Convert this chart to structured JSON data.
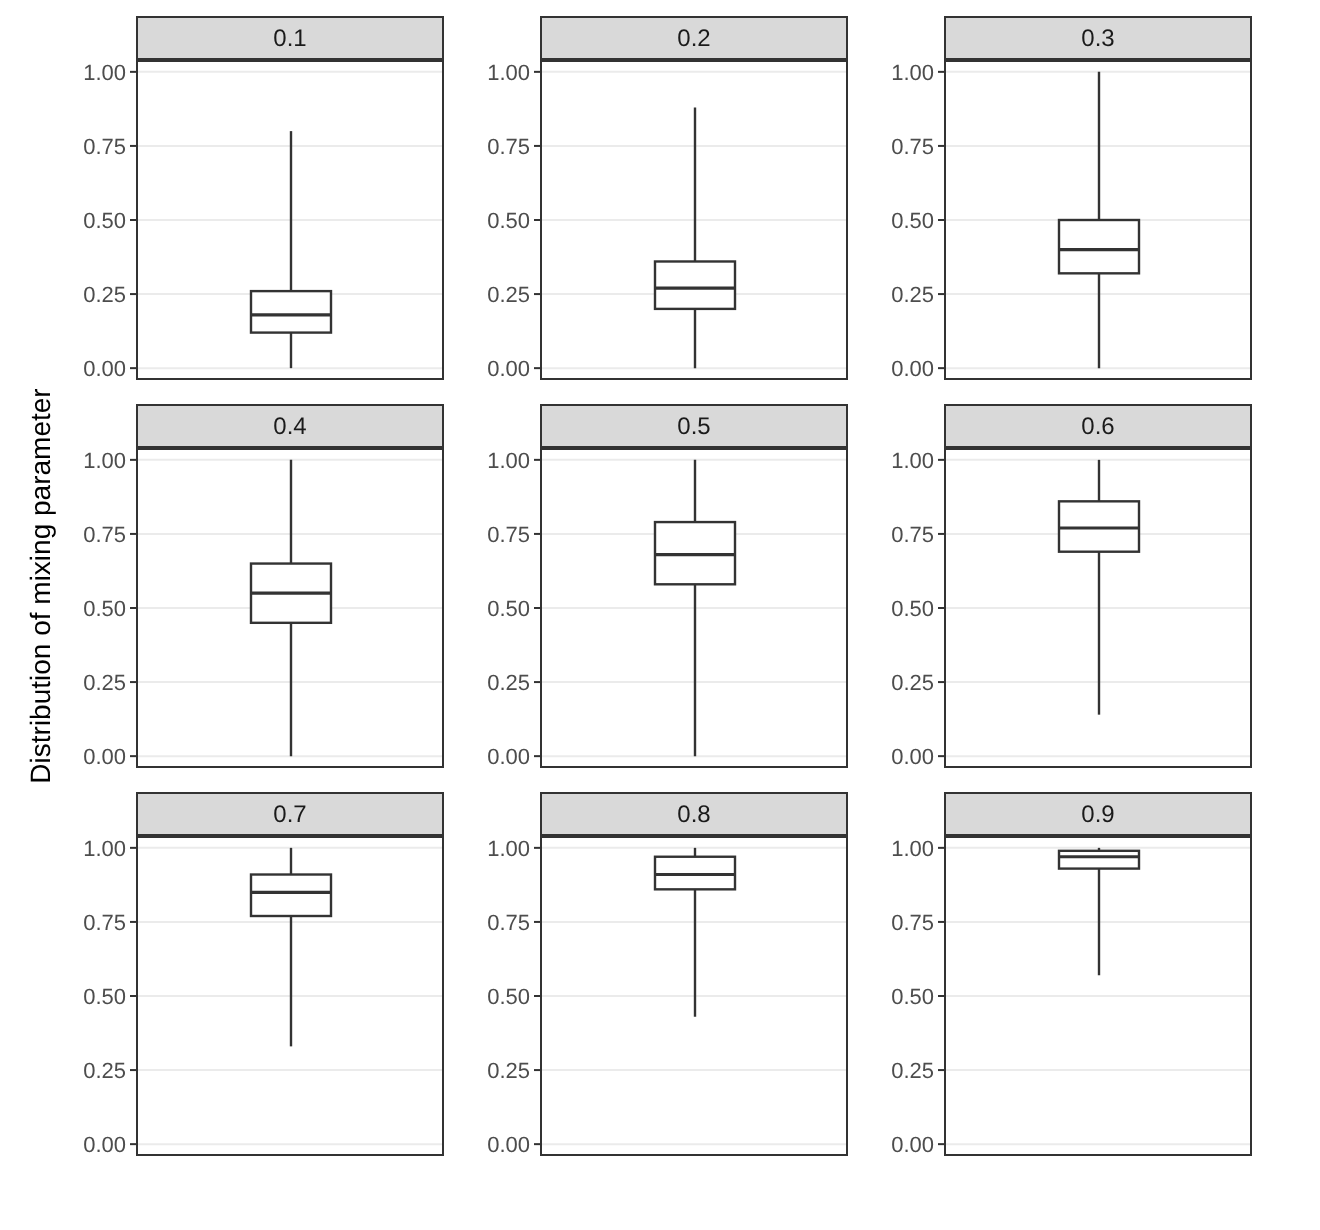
{
  "chart_data": [
    {
      "type": "box",
      "title": "0.1",
      "categories": [
        null
      ],
      "boxes": [
        {
          "low": 0,
          "q1": 0.12,
          "median": 0.18,
          "q3": 0.26,
          "high": 0.8
        }
      ],
      "ylim": [
        -0.04,
        1.04
      ],
      "yticks": [
        {
          "value": 0,
          "label": "0.00"
        },
        {
          "value": 0.25,
          "label": "0.25"
        },
        {
          "value": 0.5,
          "label": "0.50"
        },
        {
          "value": 0.75,
          "label": "0.75"
        },
        {
          "value": 1,
          "label": "1.00"
        }
      ],
      "grid": "y",
      "tick_labels": "y"
    },
    {
      "type": "box",
      "title": "0.2",
      "categories": [
        null
      ],
      "boxes": [
        {
          "low": 0,
          "q1": 0.2,
          "median": 0.27,
          "q3": 0.36,
          "high": 0.88
        }
      ],
      "ylim": [
        -0.04,
        1.04
      ],
      "yticks": [
        {
          "value": 0,
          "label": "0.00"
        },
        {
          "value": 0.25,
          "label": "0.25"
        },
        {
          "value": 0.5,
          "label": "0.50"
        },
        {
          "value": 0.75,
          "label": "0.75"
        },
        {
          "value": 1,
          "label": "1.00"
        }
      ],
      "grid": "y",
      "tick_labels": "y"
    },
    {
      "type": "box",
      "title": "0.3",
      "categories": [
        null
      ],
      "boxes": [
        {
          "low": 0,
          "q1": 0.32,
          "median": 0.4,
          "q3": 0.5,
          "high": 1
        }
      ],
      "ylim": [
        -0.04,
        1.04
      ],
      "yticks": [
        {
          "value": 0,
          "label": "0.00"
        },
        {
          "value": 0.25,
          "label": "0.25"
        },
        {
          "value": 0.5,
          "label": "0.50"
        },
        {
          "value": 0.75,
          "label": "0.75"
        },
        {
          "value": 1,
          "label": "1.00"
        }
      ],
      "grid": "y",
      "tick_labels": "y"
    },
    {
      "type": "box",
      "title": "0.4",
      "ylabel": "Distribution of mixing parameter",
      "categories": [
        null
      ],
      "boxes": [
        {
          "low": 0,
          "q1": 0.45,
          "median": 0.55,
          "q3": 0.65,
          "high": 1
        }
      ],
      "ylim": [
        -0.04,
        1.04
      ],
      "yticks": [
        {
          "value": 0,
          "label": "0.00"
        },
        {
          "value": 0.25,
          "label": "0.25"
        },
        {
          "value": 0.5,
          "label": "0.50"
        },
        {
          "value": 0.75,
          "label": "0.75"
        },
        {
          "value": 1,
          "label": "1.00"
        }
      ],
      "grid": "y",
      "tick_labels": "y"
    },
    {
      "type": "box",
      "title": "0.5",
      "categories": [
        null
      ],
      "boxes": [
        {
          "low": 0,
          "q1": 0.58,
          "median": 0.68,
          "q3": 0.79,
          "high": 1
        }
      ],
      "ylim": [
        -0.04,
        1.04
      ],
      "yticks": [
        {
          "value": 0,
          "label": "0.00"
        },
        {
          "value": 0.25,
          "label": "0.25"
        },
        {
          "value": 0.5,
          "label": "0.50"
        },
        {
          "value": 0.75,
          "label": "0.75"
        },
        {
          "value": 1,
          "label": "1.00"
        }
      ],
      "grid": "y",
      "tick_labels": "y"
    },
    {
      "type": "box",
      "title": "0.6",
      "categories": [
        null
      ],
      "boxes": [
        {
          "low": 0.14,
          "q1": 0.69,
          "median": 0.77,
          "q3": 0.86,
          "high": 1
        }
      ],
      "ylim": [
        -0.04,
        1.04
      ],
      "yticks": [
        {
          "value": 0,
          "label": "0.00"
        },
        {
          "value": 0.25,
          "label": "0.25"
        },
        {
          "value": 0.5,
          "label": "0.50"
        },
        {
          "value": 0.75,
          "label": "0.75"
        },
        {
          "value": 1,
          "label": "1.00"
        }
      ],
      "grid": "y",
      "tick_labels": "y"
    },
    {
      "type": "box",
      "title": "0.7",
      "categories": [
        null
      ],
      "boxes": [
        {
          "low": 0.33,
          "q1": 0.77,
          "median": 0.85,
          "q3": 0.91,
          "high": 1
        }
      ],
      "ylim": [
        -0.04,
        1.04
      ],
      "yticks": [
        {
          "value": 0,
          "label": "0.00"
        },
        {
          "value": 0.25,
          "label": "0.25"
        },
        {
          "value": 0.5,
          "label": "0.50"
        },
        {
          "value": 0.75,
          "label": "0.75"
        },
        {
          "value": 1,
          "label": "1.00"
        }
      ],
      "grid": "y",
      "tick_labels": "y"
    },
    {
      "type": "box",
      "title": "0.8",
      "categories": [
        null
      ],
      "boxes": [
        {
          "low": 0.43,
          "q1": 0.86,
          "median": 0.91,
          "q3": 0.97,
          "high": 1
        }
      ],
      "ylim": [
        -0.04,
        1.04
      ],
      "yticks": [
        {
          "value": 0,
          "label": "0.00"
        },
        {
          "value": 0.25,
          "label": "0.25"
        },
        {
          "value": 0.5,
          "label": "0.50"
        },
        {
          "value": 0.75,
          "label": "0.75"
        },
        {
          "value": 1,
          "label": "1.00"
        }
      ],
      "grid": "y",
      "tick_labels": "y"
    },
    {
      "type": "box",
      "title": "0.9",
      "categories": [
        null
      ],
      "boxes": [
        {
          "low": 0.57,
          "q1": 0.93,
          "median": 0.97,
          "q3": 0.99,
          "high": 1
        }
      ],
      "ylim": [
        -0.04,
        1.04
      ],
      "yticks": [
        {
          "value": 0,
          "label": "0.00"
        },
        {
          "value": 0.25,
          "label": "0.25"
        },
        {
          "value": 0.5,
          "label": "0.50"
        },
        {
          "value": 0.75,
          "label": "0.75"
        },
        {
          "value": 1,
          "label": "1.00"
        }
      ],
      "grid": "y",
      "tick_labels": "y"
    }
  ]
}
